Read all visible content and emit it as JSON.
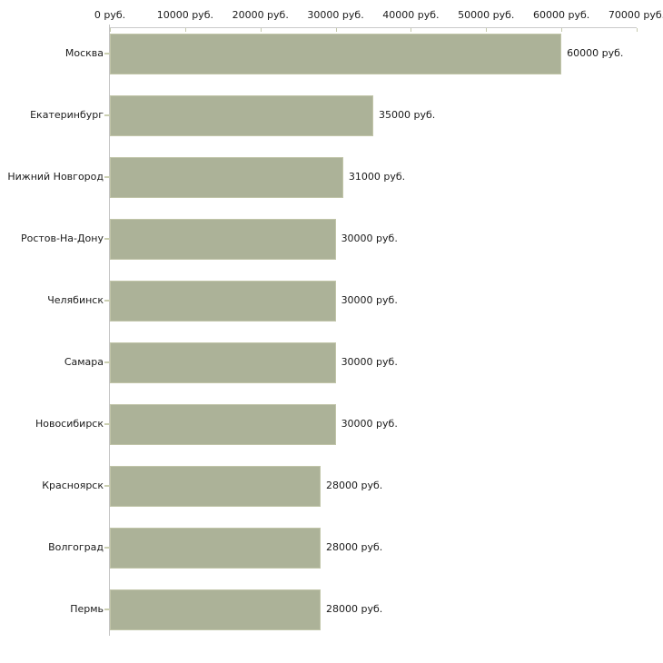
{
  "chart_data": {
    "type": "bar",
    "orientation": "horizontal",
    "title": "",
    "xlabel": "",
    "ylabel": "",
    "x_axis_position": "top",
    "xlim": [
      0,
      70000
    ],
    "grid": false,
    "legend": null,
    "value_suffix": " руб.",
    "categories": [
      "Москва",
      "Екатеринбург",
      "Нижний Новгород",
      "Ростов-На-Дону",
      "Челябинск",
      "Самара",
      "Новосибирск",
      "Красноярск",
      "Волгоград",
      "Пермь"
    ],
    "values": [
      60000,
      35000,
      31000,
      30000,
      30000,
      30000,
      30000,
      28000,
      28000,
      28000
    ],
    "bar_labels": [
      "60000 руб.",
      "35000 руб.",
      "31000 руб.",
      "30000 руб.",
      "30000 руб.",
      "30000 руб.",
      "30000 руб.",
      "28000 руб.",
      "28000 руб.",
      "28000 руб."
    ],
    "x_ticks": [
      0,
      10000,
      20000,
      30000,
      40000,
      50000,
      60000,
      70000
    ],
    "x_tick_labels": [
      "0 руб.",
      "10000 руб.",
      "20000 руб.",
      "30000 руб.",
      "40000 руб.",
      "50000 руб.",
      "60000 руб.",
      "70000 руб."
    ],
    "colors": {
      "bar_fill": "#acb298",
      "bar_edge": "#c1c5a9",
      "axis_line": "#c9c9c9",
      "y_axis_line": "#c4c4c4",
      "tick_mark": "#c6caae",
      "row_tick": "#cbcfb2",
      "text": "#1a1a1a",
      "background": "#ffffff"
    }
  }
}
